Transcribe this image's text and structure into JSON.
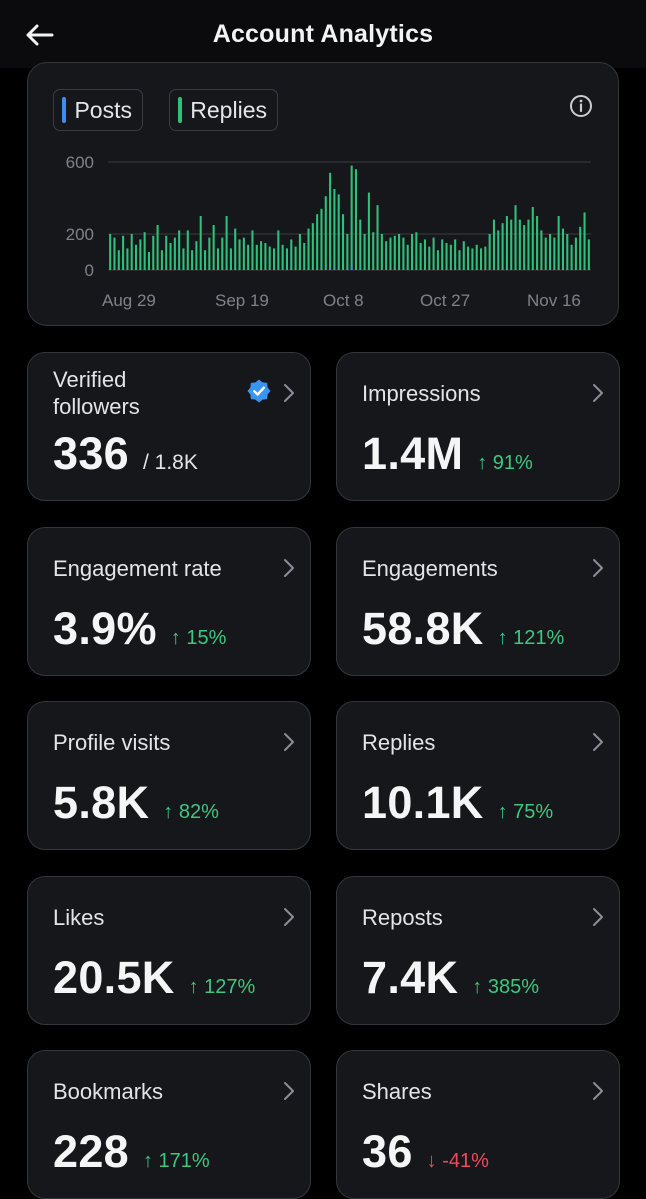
{
  "header": {
    "title": "Account Analytics",
    "back_icon": "arrow-left-icon"
  },
  "legend": [
    {
      "label": "Posts",
      "color": "#3b8ef0"
    },
    {
      "label": "Replies",
      "color": "#2fc07a"
    }
  ],
  "chart_data": {
    "type": "bar",
    "x_tick_labels": [
      "Aug 29",
      "Sep 19",
      "Oct 8",
      "Oct 27",
      "Nov 16"
    ],
    "y_tick_labels": [
      "600",
      "200",
      "0"
    ],
    "ylim": [
      0,
      600
    ],
    "grid": true,
    "series": [
      {
        "name": "Replies",
        "color": "#2fc07a",
        "values": [
          200,
          180,
          110,
          190,
          120,
          200,
          140,
          170,
          210,
          100,
          190,
          250,
          110,
          190,
          150,
          180,
          220,
          120,
          220,
          110,
          160,
          300,
          110,
          180,
          250,
          120,
          180,
          300,
          120,
          230,
          170,
          180,
          140,
          220,
          140,
          160,
          150,
          130,
          120,
          220,
          140,
          120,
          170,
          130,
          200,
          150,
          230,
          260,
          310,
          340,
          410,
          540,
          450,
          420,
          310,
          200,
          580,
          560,
          280,
          200,
          430,
          210,
          360,
          200,
          160,
          180,
          190,
          200,
          180,
          140,
          200,
          210,
          150,
          170,
          130,
          180,
          110,
          170,
          150,
          140,
          170,
          110,
          160,
          130,
          120,
          140,
          120,
          130,
          200,
          280,
          220,
          260,
          300,
          280,
          360,
          280,
          250,
          280,
          350,
          300,
          220,
          180,
          200,
          180,
          300,
          230,
          200,
          140,
          180,
          240,
          320,
          170
        ],
        "values_note": "estimated per-day bar heights"
      },
      {
        "name": "Posts",
        "color": "#3b8ef0",
        "values": [
          0,
          0,
          0,
          0,
          0,
          0,
          0,
          0,
          0,
          0,
          0,
          0,
          0,
          0,
          0,
          0,
          0,
          0,
          0,
          0,
          0,
          0,
          0,
          0,
          0,
          0,
          0,
          0,
          0,
          0,
          0,
          0,
          0,
          0,
          0,
          0,
          0,
          0,
          0,
          0,
          0,
          0,
          0,
          0,
          0,
          0,
          0,
          0,
          0,
          0,
          0,
          10,
          0,
          0,
          0,
          0,
          20,
          0,
          0,
          0,
          0,
          0,
          0,
          0,
          0,
          0,
          0,
          0,
          0,
          0,
          0,
          0,
          0,
          0,
          0,
          0,
          0,
          0,
          0,
          0,
          0,
          0,
          0,
          0,
          0,
          0,
          0,
          0,
          0,
          0,
          0,
          0,
          0,
          0,
          0,
          0,
          0,
          0,
          0,
          0,
          0,
          0,
          0,
          0,
          0,
          0,
          0,
          0,
          0,
          0,
          0,
          0
        ]
      }
    ]
  },
  "stats": [
    {
      "label": "Verified followers",
      "value": "336",
      "sub": "/ 1.8K",
      "verified": true
    },
    {
      "label": "Impressions",
      "value": "1.4M",
      "change": "↑ 91%",
      "dir": "up"
    },
    {
      "label": "Engagement rate",
      "value": "3.9%",
      "change": "↑ 15%",
      "dir": "up"
    },
    {
      "label": "Engagements",
      "value": "58.8K",
      "change": "↑ 121%",
      "dir": "up"
    },
    {
      "label": "Profile visits",
      "value": "5.8K",
      "change": "↑ 82%",
      "dir": "up"
    },
    {
      "label": "Replies",
      "value": "10.1K",
      "change": "↑ 75%",
      "dir": "up"
    },
    {
      "label": "Likes",
      "value": "20.5K",
      "change": "↑ 127%",
      "dir": "up"
    },
    {
      "label": "Reposts",
      "value": "7.4K",
      "change": "↑ 385%",
      "dir": "up"
    },
    {
      "label": "Bookmarks",
      "value": "228",
      "change": "↑ 171%",
      "dir": "up"
    },
    {
      "label": "Shares",
      "value": "36",
      "change": "↓ -41%",
      "dir": "down"
    }
  ]
}
